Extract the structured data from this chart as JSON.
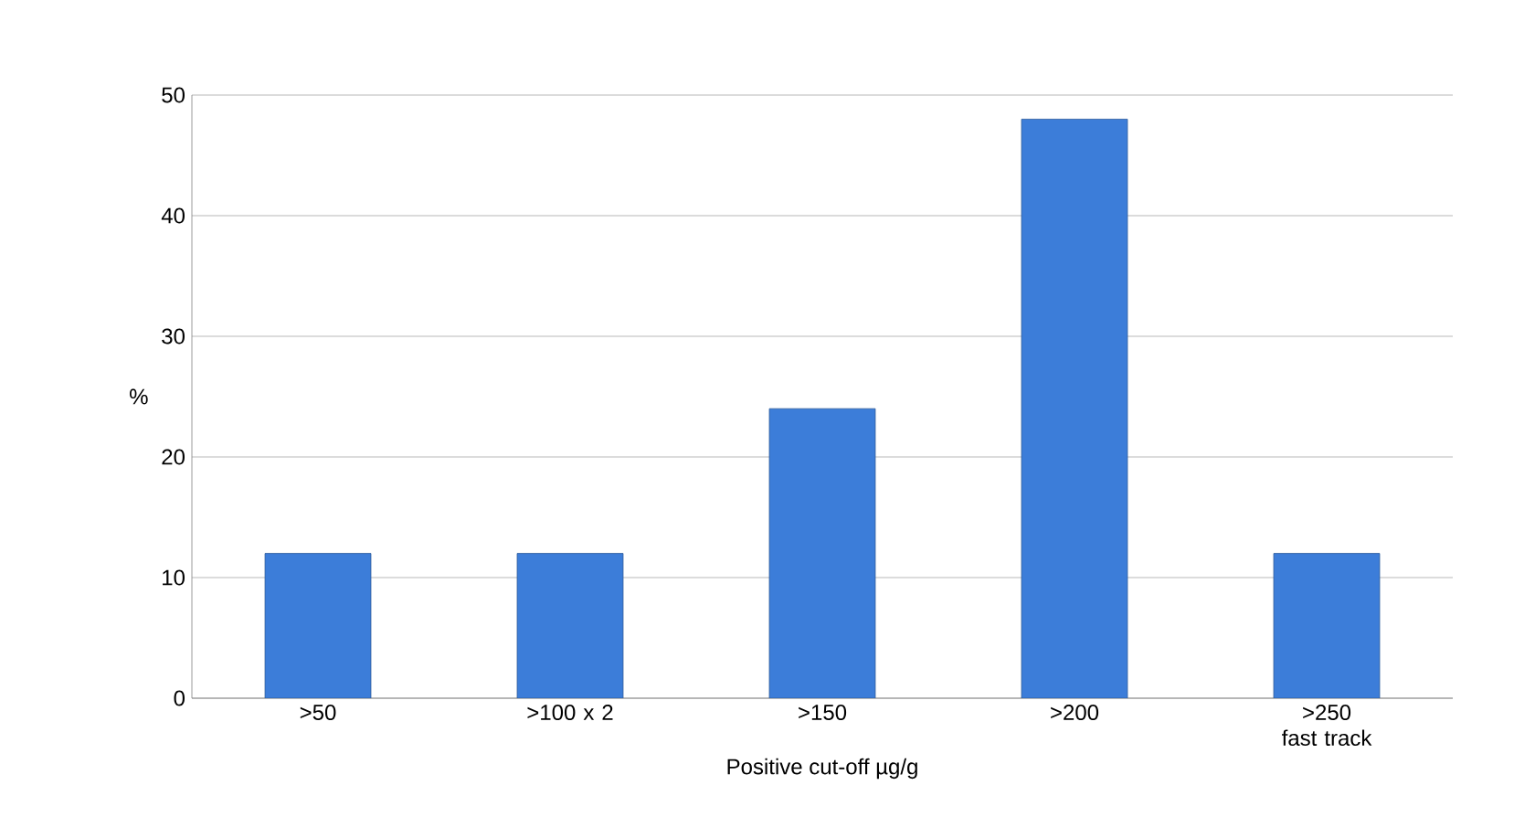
{
  "chart_data": {
    "type": "bar",
    "categories": [
      ">50",
      ">100 x 2",
      ">150",
      ">200",
      ">250 fast track"
    ],
    "values": [
      12,
      12,
      24,
      48,
      12
    ],
    "color": "#3c7dd9",
    "xlabel": "Positive cut-off µg/g",
    "ylabel": "%",
    "ylim": [
      0,
      50
    ],
    "yticks": [
      0,
      10,
      20,
      30,
      40,
      50
    ],
    "grid": "y"
  }
}
